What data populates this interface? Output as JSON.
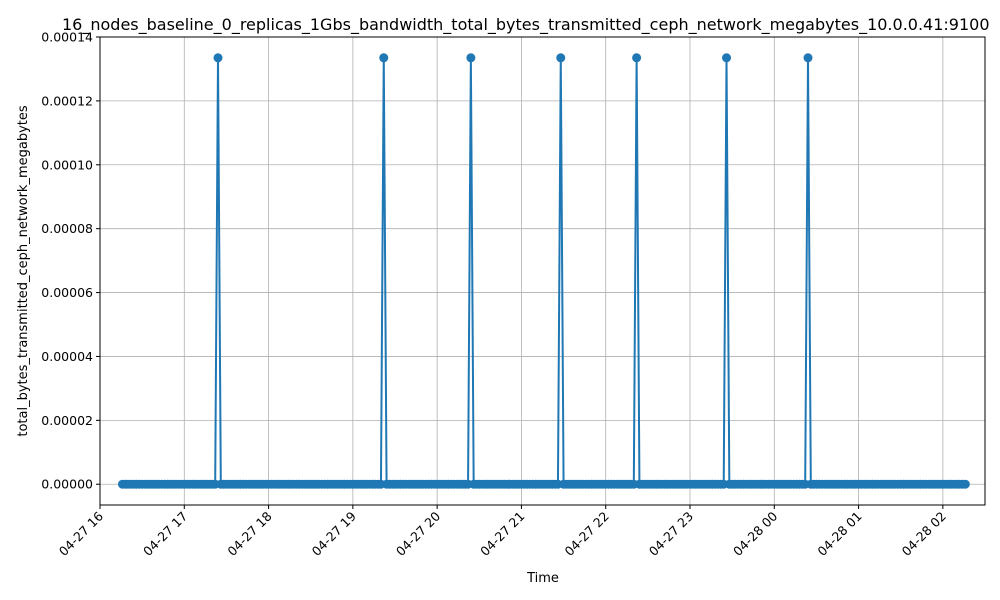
{
  "chart_data": {
    "type": "line",
    "title": "16_nodes_baseline_0_replicas_1Gbs_bandwidth_total_bytes_transmitted_ceph_network_megabytes_10.0.0.41:9100",
    "xlabel": "Time",
    "ylabel": "total_bytes_transmitted_ceph_network_megabytes",
    "x_tick_labels": [
      "04-27 16",
      "04-27 17",
      "04-27 18",
      "04-27 19",
      "04-27 20",
      "04-27 21",
      "04-27 22",
      "04-27 23",
      "04-28 00",
      "04-28 01",
      "04-28 02"
    ],
    "y_tick_labels": [
      "0.00000",
      "0.00002",
      "0.00004",
      "0.00006",
      "0.00008",
      "0.00010",
      "0.00012",
      "0.00014"
    ],
    "ylim": [
      -6.5e-06,
      0.00014
    ],
    "xlim": [
      "2024-04-27 16:00",
      "2024-04-28 02:30"
    ],
    "grid": true,
    "series": [
      {
        "color": "#1f77b4",
        "sample_interval_minutes": 2,
        "start": "2024-04-27 16:16",
        "end": "2024-04-28 02:16",
        "baseline_value": 0.0,
        "spikes": [
          {
            "time": "2024-04-27 17:24",
            "value": 0.0001335
          },
          {
            "time": "2024-04-27 19:22",
            "value": 0.0001335
          },
          {
            "time": "2024-04-27 20:24",
            "value": 0.0001335
          },
          {
            "time": "2024-04-27 21:28",
            "value": 0.0001335
          },
          {
            "time": "2024-04-27 22:22",
            "value": 0.0001335
          },
          {
            "time": "2024-04-27 23:26",
            "value": 0.0001335
          },
          {
            "time": "2024-04-28 00:24",
            "value": 0.0001335
          }
        ]
      }
    ]
  }
}
